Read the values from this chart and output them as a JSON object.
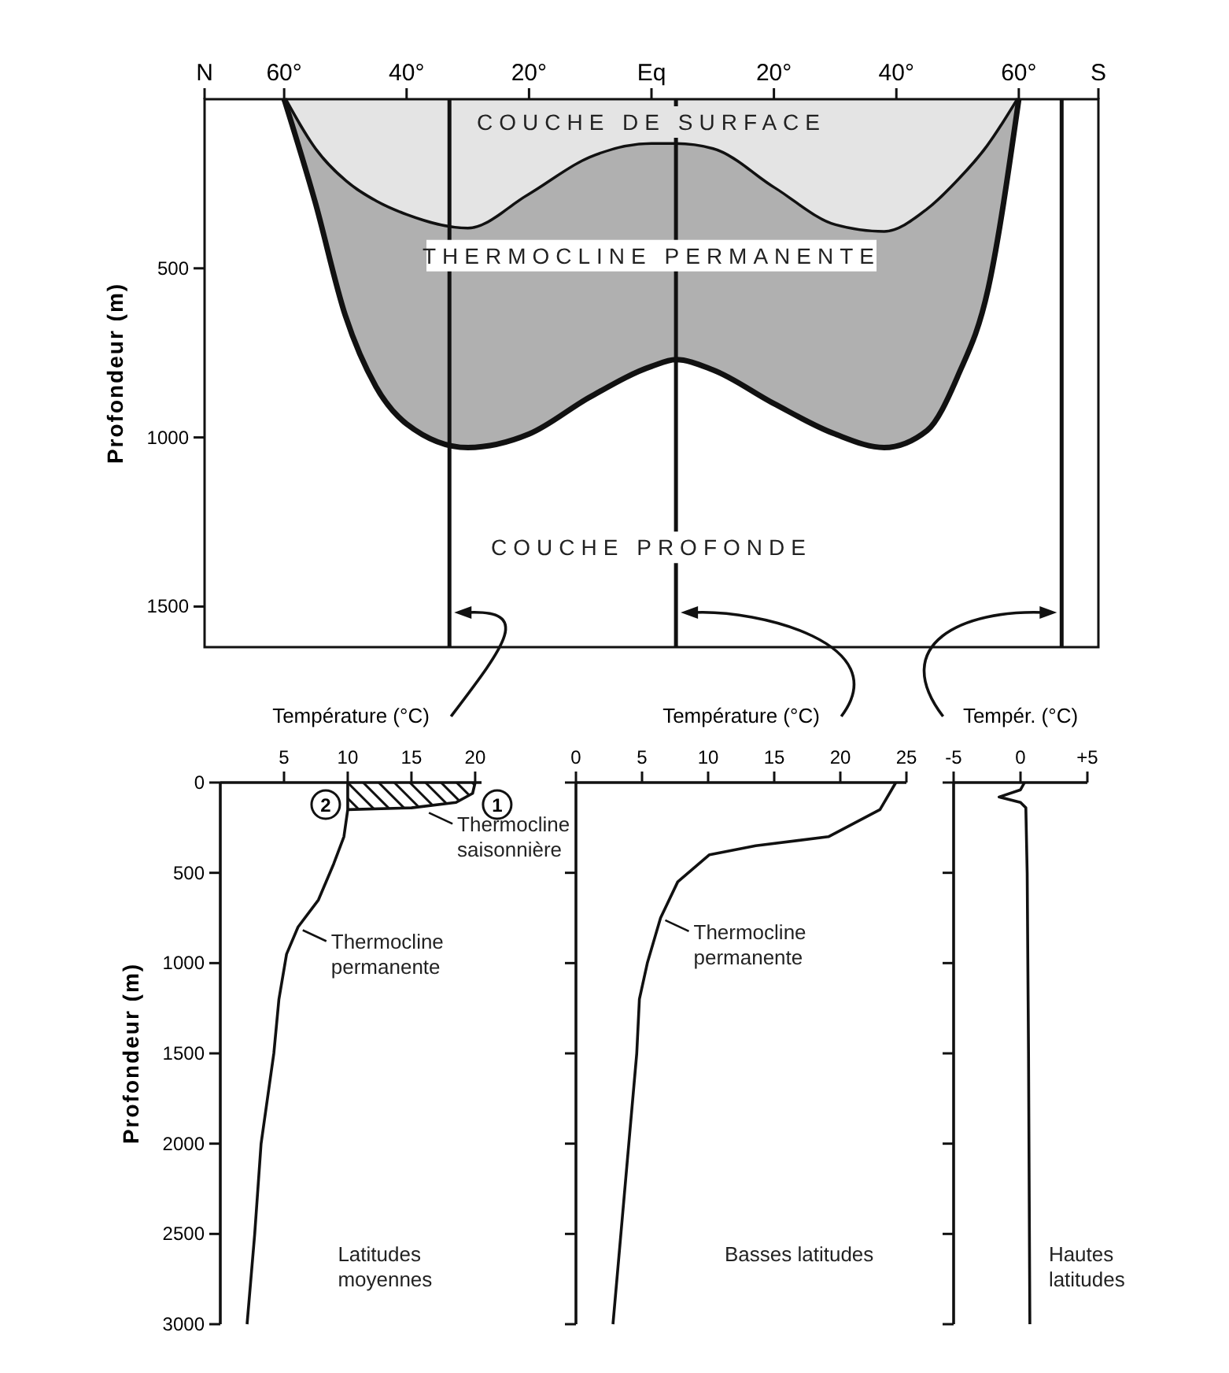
{
  "chart_data": [
    {
      "type": "area",
      "stacked": true,
      "ylabel": "Profondeur (m)",
      "x": [
        -60,
        -55,
        -50,
        -45,
        -40,
        -30,
        -20,
        -10,
        0,
        4,
        10,
        20,
        30,
        38,
        45,
        50,
        55,
        60
      ],
      "series": [
        {
          "name": "COUCHE DE SURFACE",
          "color": "#e4e4e4",
          "values": [
            0,
            150,
            245,
            305,
            345,
            385,
            285,
            175,
            135,
            135,
            150,
            265,
            375,
            395,
            330,
            245,
            140,
            0
          ]
        },
        {
          "name": "THERMOCLINE PERMANENTE",
          "color": "#b0b0b0",
          "values": [
            0,
            150,
            395,
            545,
            615,
            645,
            705,
            705,
            655,
            635,
            650,
            635,
            615,
            635,
            650,
            575,
            420,
            0
          ]
        }
      ],
      "xlim": [
        -73,
        73
      ],
      "xticks": [
        {
          "value": -73,
          "label": "N"
        },
        {
          "value": -60,
          "label": "60°"
        },
        {
          "value": -40,
          "label": "40°"
        },
        {
          "value": -20,
          "label": "20°"
        },
        {
          "value": 0,
          "label": "Eq"
        },
        {
          "value": 20,
          "label": "20°"
        },
        {
          "value": 40,
          "label": "40°"
        },
        {
          "value": 60,
          "label": "60°"
        },
        {
          "value": 73,
          "label": "S"
        }
      ],
      "ylim": [
        1620,
        0
      ],
      "yticks": [
        500,
        1000,
        1500
      ],
      "ref_lines": [
        {
          "axis": "x",
          "value": -33
        },
        {
          "axis": "x",
          "value": 4
        },
        {
          "axis": "x",
          "value": 67
        }
      ],
      "annotations": [
        "COUCHE PROFONDE"
      ]
    },
    {
      "type": "line",
      "xlabel": "Température (°C)",
      "ylabel": "Profondeur (m)",
      "series": [
        {
          "name": "1",
          "color": "#111111",
          "x": [
            20,
            19.8,
            18.5,
            15,
            10
          ],
          "values": [
            0,
            60,
            110,
            140,
            150
          ]
        },
        {
          "name": "2",
          "color": "#111111",
          "x": [
            10,
            10,
            9.7,
            8.9,
            7.7,
            6.1,
            5.2,
            4.6,
            4.2,
            3.2,
            2.7,
            2.1
          ],
          "values": [
            0,
            150,
            300,
            450,
            650,
            800,
            950,
            1200,
            1500,
            2000,
            2500,
            3000
          ]
        }
      ],
      "xlim": [
        0,
        20.5
      ],
      "xticks": [
        5,
        10,
        15,
        20
      ],
      "ylim": [
        3000,
        0
      ],
      "yticks": [
        0,
        500,
        1000,
        1500,
        2000,
        2500,
        3000
      ],
      "annotations": [
        {
          "text": "Thermocline saisonnière",
          "x": 16,
          "y": 150
        },
        {
          "text": "Thermocline permanente",
          "x": 6.1,
          "y": 800
        },
        "Latitudes moyennes"
      ]
    },
    {
      "type": "line",
      "xlabel": "Température (°C)",
      "tick_labels": "x",
      "series": [
        {
          "color": "#111111",
          "x": [
            24.2,
            23,
            19.1,
            13.6,
            10.1,
            7.7,
            6.4,
            5.4,
            4.8,
            4.6,
            4,
            3.4,
            2.8
          ],
          "values": [
            0,
            150,
            300,
            350,
            400,
            550,
            750,
            1000,
            1200,
            1500,
            2000,
            2500,
            3000
          ]
        }
      ],
      "xlim": [
        0,
        25
      ],
      "xticks": [
        0,
        5,
        10,
        15,
        20,
        25
      ],
      "ylim": [
        3000,
        0
      ],
      "yticks": [
        0,
        500,
        1000,
        1500,
        2000,
        2500,
        3000
      ],
      "annotations": [
        {
          "text": "Thermocline permanente",
          "x": 6.4,
          "y": 745
        },
        "Basses latitudes"
      ]
    },
    {
      "type": "line",
      "xlabel": "Tempér. (°C)",
      "tick_labels": "x",
      "series": [
        {
          "color": "#111111",
          "x": [
            0.3,
            0,
            -1.6,
            0,
            0.4,
            0.5,
            0.6,
            0.7
          ],
          "values": [
            0,
            40,
            80,
            110,
            140,
            500,
            1500,
            3000
          ]
        }
      ],
      "xlim": [
        -5,
        5
      ],
      "xticks": [
        -5,
        0,
        {
          "value": 5,
          "label": "+5"
        }
      ],
      "ylim": [
        3000,
        0
      ],
      "yticks": [
        0,
        500,
        1000,
        1500,
        2000,
        2500,
        3000
      ],
      "annotations": [
        "Hautes latitudes"
      ]
    }
  ]
}
